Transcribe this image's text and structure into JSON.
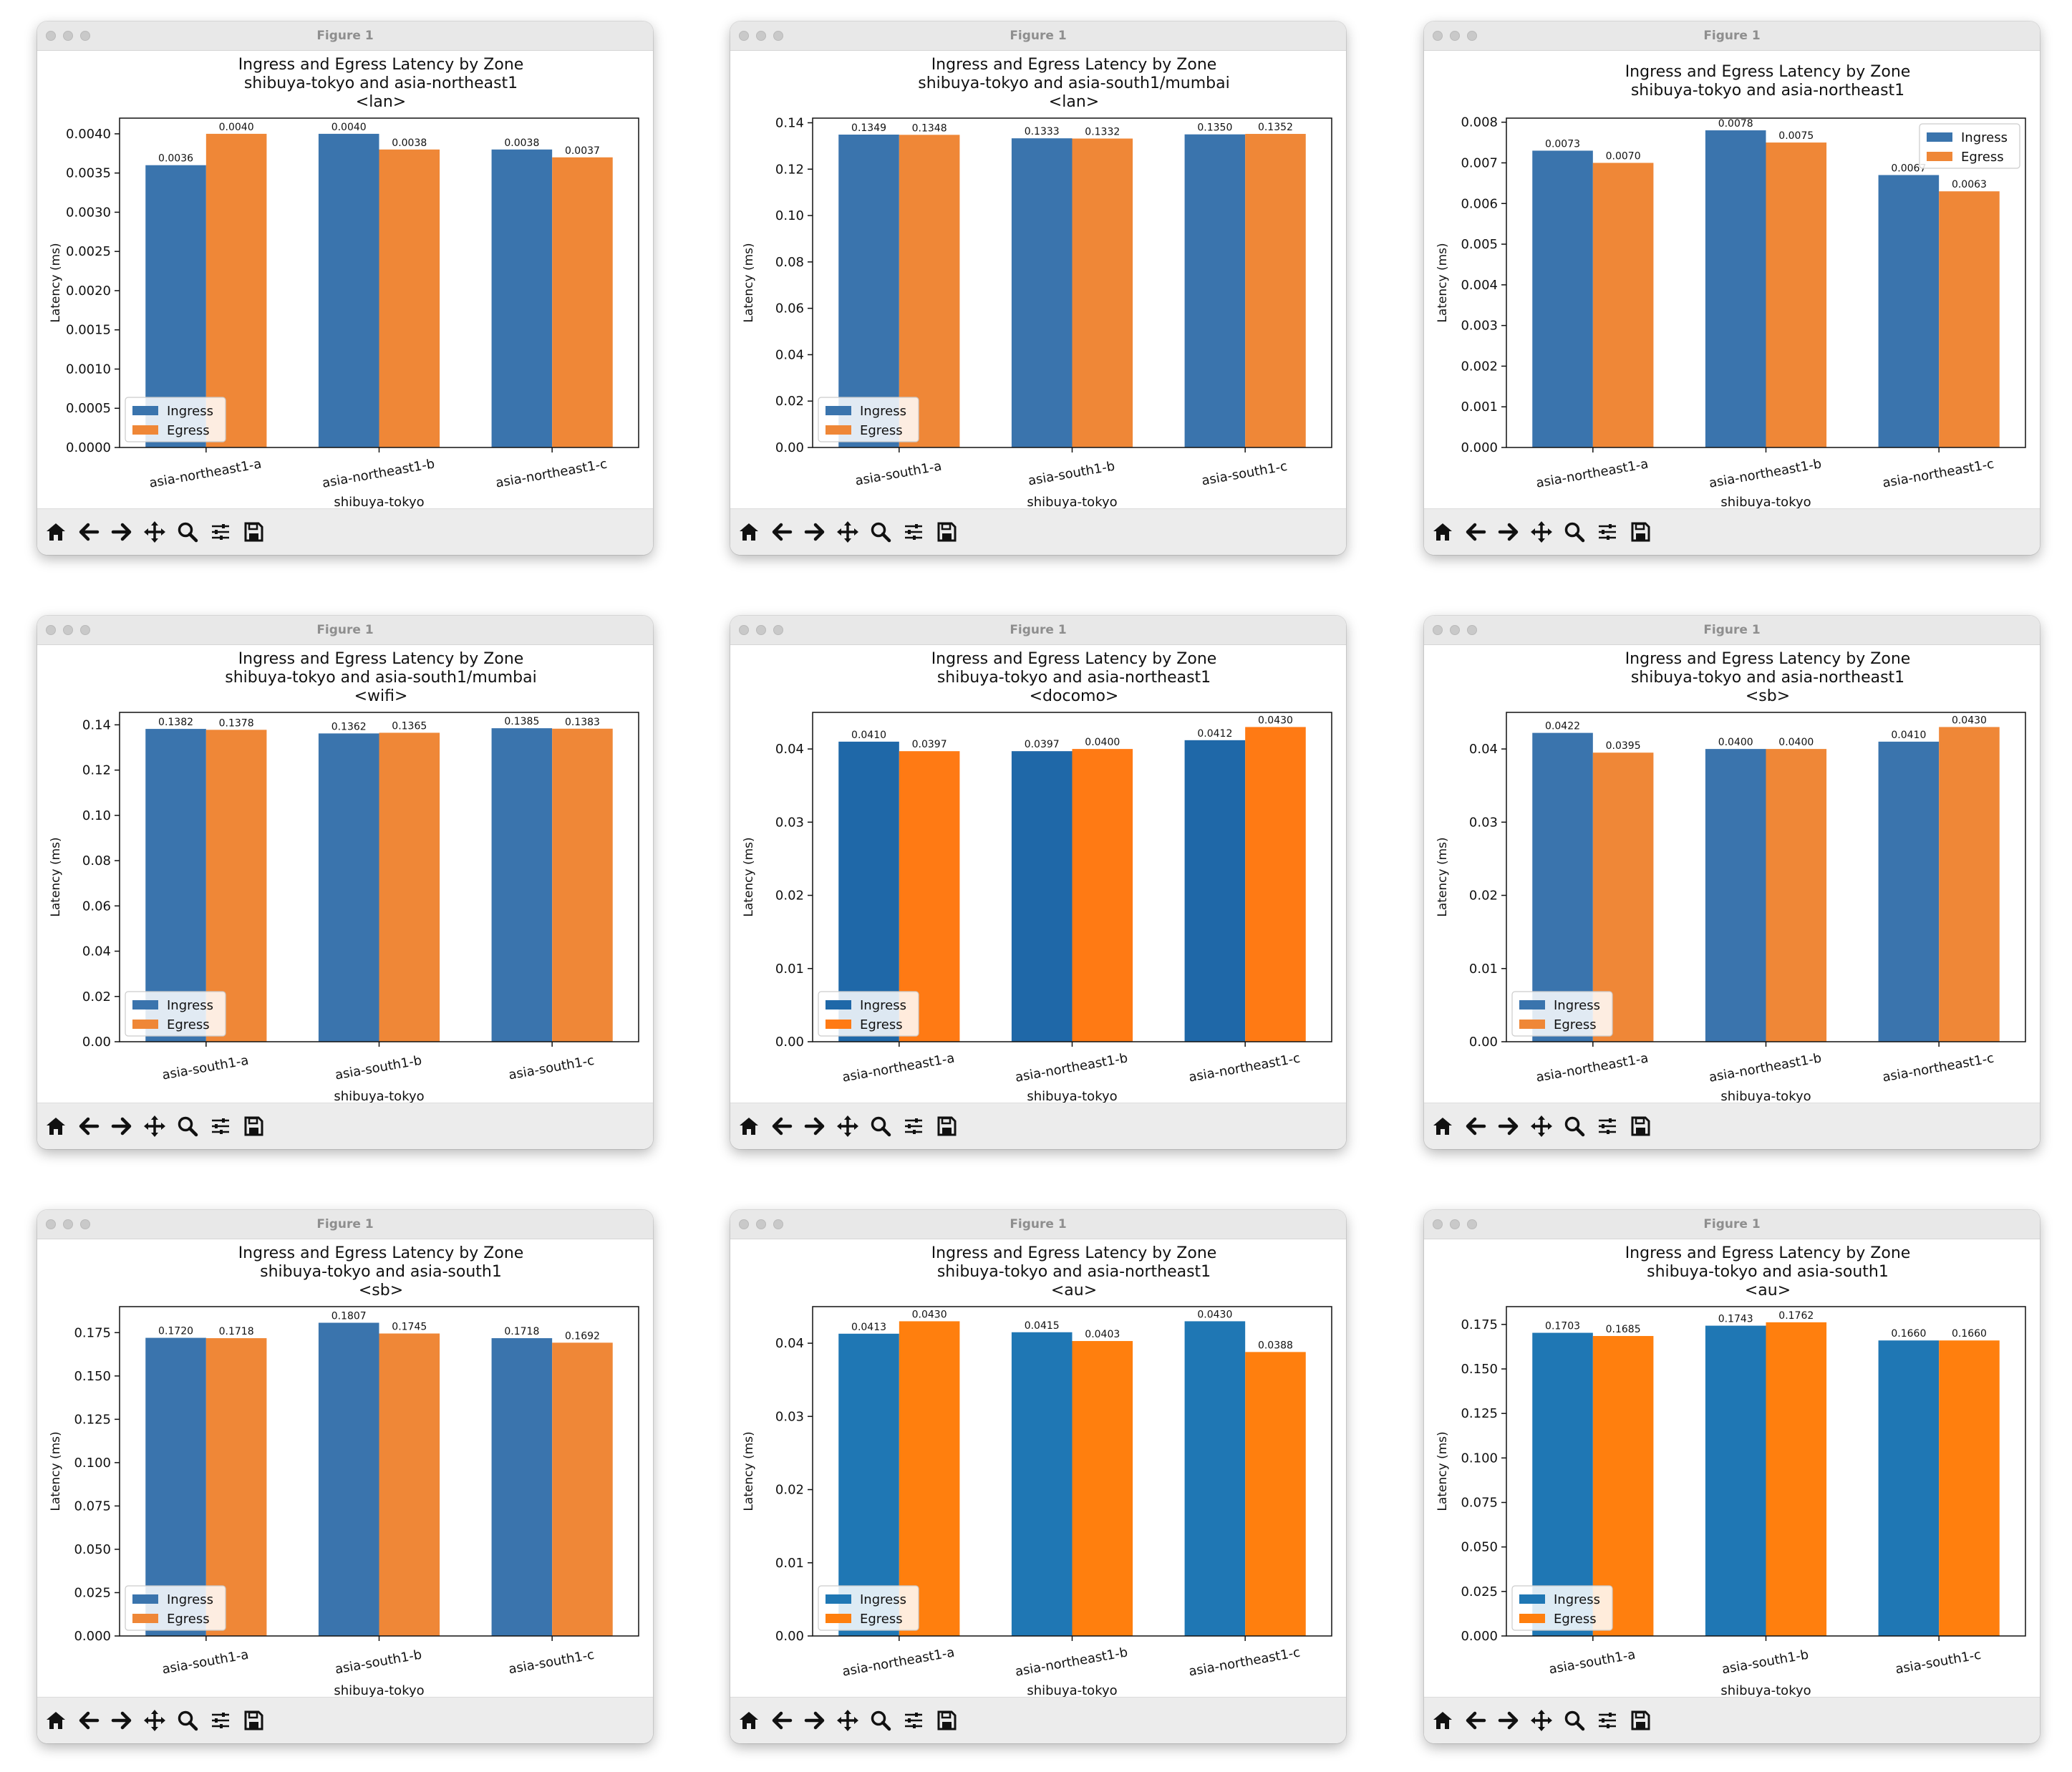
{
  "colors": {
    "steel_ingress": "#3a74ad",
    "steel_egress": "#ef8737",
    "mpl_ingress": "#1f77b4",
    "mpl_egress": "#ff7f0e",
    "docomo_ingress": "#1f68a8",
    "docomo_egress": "#ff7a14"
  },
  "toolbar": {
    "icons": [
      "home-icon",
      "back-arrow-icon",
      "forward-arrow-icon",
      "pan-icon",
      "zoom-icon",
      "subplots-icon",
      "save-icon"
    ]
  },
  "windows": [
    {
      "title": "Figure 1"
    },
    {
      "title": "Figure 1"
    },
    {
      "title": "Figure 1"
    },
    {
      "title": "Figure 1"
    },
    {
      "title": "Figure 1"
    },
    {
      "title": "Figure 1"
    },
    {
      "title": "Figure 1"
    },
    {
      "title": "Figure 1"
    },
    {
      "title": "Figure 1"
    }
  ],
  "chart_data": [
    {
      "type": "bar",
      "title": [
        "Ingress and Egress Latency by Zone",
        "shibuya-tokyo and asia-northeast1",
        "<lan>"
      ],
      "xlabel": "shibuya-tokyo",
      "ylabel": "Latency (ms)",
      "categories": [
        "asia-northeast1-a",
        "asia-northeast1-b",
        "asia-northeast1-c"
      ],
      "series": [
        {
          "name": "Ingress",
          "values": [
            0.0036,
            0.004,
            0.0038
          ],
          "labels": [
            "0.0036",
            "0.0040",
            "0.0038"
          ]
        },
        {
          "name": "Egress",
          "values": [
            0.004,
            0.0038,
            0.0037
          ],
          "labels": [
            "0.0040",
            "0.0038",
            "0.0037"
          ]
        }
      ],
      "ylim": [
        0,
        0.0042
      ],
      "yticks": [
        0,
        0.0005,
        0.001,
        0.0015,
        0.002,
        0.0025,
        0.003,
        0.0035,
        0.004
      ],
      "ytick_labels": [
        "0.0000",
        "0.0005",
        "0.0010",
        "0.0015",
        "0.0020",
        "0.0025",
        "0.0030",
        "0.0035",
        "0.0040"
      ],
      "legend": "lower-left",
      "palette": "steel"
    },
    {
      "type": "bar",
      "title": [
        "Ingress and Egress Latency by Zone",
        "shibuya-tokyo and asia-south1/mumbai",
        "<lan>"
      ],
      "xlabel": "shibuya-tokyo",
      "ylabel": "Latency (ms)",
      "categories": [
        "asia-south1-a",
        "asia-south1-b",
        "asia-south1-c"
      ],
      "series": [
        {
          "name": "Ingress",
          "values": [
            0.1349,
            0.1333,
            0.135
          ],
          "labels": [
            "0.1349",
            "0.1333",
            "0.1350"
          ]
        },
        {
          "name": "Egress",
          "values": [
            0.1348,
            0.1332,
            0.1352
          ],
          "labels": [
            "0.1348",
            "0.1332",
            "0.1352"
          ]
        }
      ],
      "ylim": [
        0,
        0.142
      ],
      "yticks": [
        0,
        0.02,
        0.04,
        0.06,
        0.08,
        0.1,
        0.12,
        0.14
      ],
      "ytick_labels": [
        "0.00",
        "0.02",
        "0.04",
        "0.06",
        "0.08",
        "0.10",
        "0.12",
        "0.14"
      ],
      "legend": "lower-left",
      "palette": "steel"
    },
    {
      "type": "bar",
      "title": [
        "Ingress and Egress Latency by Zone",
        "shibuya-tokyo and asia-northeast1"
      ],
      "xlabel": "shibuya-tokyo",
      "ylabel": "Latency (ms)",
      "categories": [
        "asia-northeast1-a",
        "asia-northeast1-b",
        "asia-northeast1-c"
      ],
      "series": [
        {
          "name": "Ingress",
          "values": [
            0.0073,
            0.0078,
            0.0067
          ],
          "labels": [
            "0.0073",
            "0.0078",
            "0.0067"
          ]
        },
        {
          "name": "Egress",
          "values": [
            0.007,
            0.0075,
            0.0063
          ],
          "labels": [
            "0.0070",
            "0.0075",
            "0.0063"
          ]
        }
      ],
      "ylim": [
        0,
        0.0081
      ],
      "yticks": [
        0,
        0.001,
        0.002,
        0.003,
        0.004,
        0.005,
        0.006,
        0.007,
        0.008
      ],
      "ytick_labels": [
        "0.000",
        "0.001",
        "0.002",
        "0.003",
        "0.004",
        "0.005",
        "0.006",
        "0.007",
        "0.008"
      ],
      "legend": "upper-right",
      "palette": "steel"
    },
    {
      "type": "bar",
      "title": [
        "Ingress and Egress Latency by Zone",
        "shibuya-tokyo and asia-south1/mumbai",
        "<wifi>"
      ],
      "xlabel": "shibuya-tokyo",
      "ylabel": "Latency (ms)",
      "categories": [
        "asia-south1-a",
        "asia-south1-b",
        "asia-south1-c"
      ],
      "series": [
        {
          "name": "Ingress",
          "values": [
            0.1382,
            0.1362,
            0.1385
          ],
          "labels": [
            "0.1382",
            "0.1362",
            "0.1385"
          ]
        },
        {
          "name": "Egress",
          "values": [
            0.1378,
            0.1365,
            0.1383
          ],
          "labels": [
            "0.1378",
            "0.1365",
            "0.1383"
          ]
        }
      ],
      "ylim": [
        0,
        0.1455
      ],
      "yticks": [
        0,
        0.02,
        0.04,
        0.06,
        0.08,
        0.1,
        0.12,
        0.14
      ],
      "ytick_labels": [
        "0.00",
        "0.02",
        "0.04",
        "0.06",
        "0.08",
        "0.10",
        "0.12",
        "0.14"
      ],
      "legend": "lower-left",
      "palette": "steel"
    },
    {
      "type": "bar",
      "title": [
        "Ingress and Egress Latency by Zone",
        "shibuya-tokyo and asia-northeast1",
        "<docomo>"
      ],
      "xlabel": "shibuya-tokyo",
      "ylabel": "Latency (ms)",
      "categories": [
        "asia-northeast1-a",
        "asia-northeast1-b",
        "asia-northeast1-c"
      ],
      "series": [
        {
          "name": "Ingress",
          "values": [
            0.041,
            0.0397,
            0.0412
          ],
          "labels": [
            "0.0410",
            "0.0397",
            "0.0412"
          ]
        },
        {
          "name": "Egress",
          "values": [
            0.0397,
            0.04,
            0.043
          ],
          "labels": [
            "0.0397",
            "0.0400",
            "0.0430"
          ]
        }
      ],
      "ylim": [
        0,
        0.045
      ],
      "yticks": [
        0,
        0.01,
        0.02,
        0.03,
        0.04
      ],
      "ytick_labels": [
        "0.00",
        "0.01",
        "0.02",
        "0.03",
        "0.04"
      ],
      "legend": "lower-left",
      "palette": "docomo"
    },
    {
      "type": "bar",
      "title": [
        "Ingress and Egress Latency by Zone",
        "shibuya-tokyo and asia-northeast1",
        "<sb>"
      ],
      "xlabel": "shibuya-tokyo",
      "ylabel": "Latency (ms)",
      "categories": [
        "asia-northeast1-a",
        "asia-northeast1-b",
        "asia-northeast1-c"
      ],
      "series": [
        {
          "name": "Ingress",
          "values": [
            0.0422,
            0.04,
            0.041
          ],
          "labels": [
            "0.0422",
            "0.0400",
            "0.0410"
          ]
        },
        {
          "name": "Egress",
          "values": [
            0.0395,
            0.04,
            0.043
          ],
          "labels": [
            "0.0395",
            "0.0400",
            "0.0430"
          ]
        }
      ],
      "ylim": [
        0,
        0.045
      ],
      "yticks": [
        0,
        0.01,
        0.02,
        0.03,
        0.04
      ],
      "ytick_labels": [
        "0.00",
        "0.01",
        "0.02",
        "0.03",
        "0.04"
      ],
      "legend": "lower-left",
      "palette": "steel"
    },
    {
      "type": "bar",
      "title": [
        "Ingress and Egress Latency by Zone",
        "shibuya-tokyo and asia-south1",
        "<sb>"
      ],
      "xlabel": "shibuya-tokyo",
      "ylabel": "Latency (ms)",
      "categories": [
        "asia-south1-a",
        "asia-south1-b",
        "asia-south1-c"
      ],
      "series": [
        {
          "name": "Ingress",
          "values": [
            0.172,
            0.1807,
            0.1718
          ],
          "labels": [
            "0.1720",
            "0.1807",
            "0.1718"
          ]
        },
        {
          "name": "Egress",
          "values": [
            0.1718,
            0.1745,
            0.1692
          ],
          "labels": [
            "0.1718",
            "0.1745",
            "0.1692"
          ]
        }
      ],
      "ylim": [
        0,
        0.19
      ],
      "yticks": [
        0,
        0.025,
        0.05,
        0.075,
        0.1,
        0.125,
        0.15,
        0.175
      ],
      "ytick_labels": [
        "0.000",
        "0.025",
        "0.050",
        "0.075",
        "0.100",
        "0.125",
        "0.150",
        "0.175"
      ],
      "legend": "lower-left",
      "palette": "steel"
    },
    {
      "type": "bar",
      "title": [
        "Ingress and Egress Latency by Zone",
        "shibuya-tokyo and asia-northeast1",
        "<au>"
      ],
      "xlabel": "shibuya-tokyo",
      "ylabel": "Latency (ms)",
      "categories": [
        "asia-northeast1-a",
        "asia-northeast1-b",
        "asia-northeast1-c"
      ],
      "series": [
        {
          "name": "Ingress",
          "values": [
            0.0413,
            0.0415,
            0.043
          ],
          "labels": [
            "0.0413",
            "0.0415",
            "0.0430"
          ]
        },
        {
          "name": "Egress",
          "values": [
            0.043,
            0.0403,
            0.0388
          ],
          "labels": [
            "0.0430",
            "0.0403",
            "0.0388"
          ]
        }
      ],
      "ylim": [
        0,
        0.045
      ],
      "yticks": [
        0,
        0.01,
        0.02,
        0.03,
        0.04
      ],
      "ytick_labels": [
        "0.00",
        "0.01",
        "0.02",
        "0.03",
        "0.04"
      ],
      "legend": "lower-left",
      "palette": "mpl"
    },
    {
      "type": "bar",
      "title": [
        "Ingress and Egress Latency by Zone",
        "shibuya-tokyo and asia-south1",
        "<au>"
      ],
      "xlabel": "shibuya-tokyo",
      "ylabel": "Latency (ms)",
      "categories": [
        "asia-south1-a",
        "asia-south1-b",
        "asia-south1-c"
      ],
      "series": [
        {
          "name": "Ingress",
          "values": [
            0.1703,
            0.1743,
            0.166
          ],
          "labels": [
            "0.1703",
            "0.1743",
            "0.1660"
          ]
        },
        {
          "name": "Egress",
          "values": [
            0.1685,
            0.1762,
            0.166
          ],
          "labels": [
            "0.1685",
            "0.1762",
            "0.1660"
          ]
        }
      ],
      "ylim": [
        0,
        0.185
      ],
      "yticks": [
        0,
        0.025,
        0.05,
        0.075,
        0.1,
        0.125,
        0.15,
        0.175
      ],
      "ytick_labels": [
        "0.000",
        "0.025",
        "0.050",
        "0.075",
        "0.100",
        "0.125",
        "0.150",
        "0.175"
      ],
      "legend": "lower-left",
      "palette": "mpl"
    }
  ]
}
